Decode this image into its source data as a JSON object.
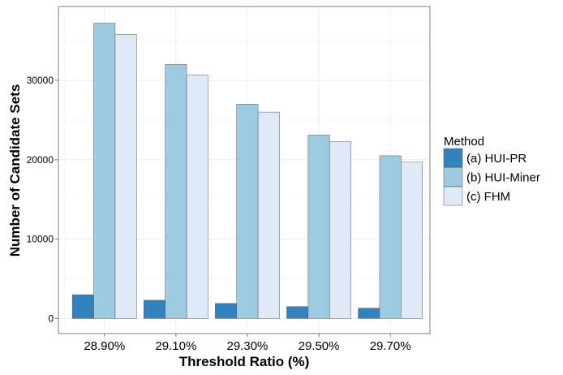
{
  "chart_data": {
    "type": "bar",
    "xlabel": "Threshold Ratio (%)",
    "ylabel": "Number of Candidate Sets",
    "categories": [
      "28.90%",
      "29.10%",
      "29.30%",
      "29.50%",
      "29.70%"
    ],
    "series": [
      {
        "name": "(a) HUI-PR",
        "color": "#3182bd",
        "values": [
          3000,
          2300,
          1900,
          1500,
          1300
        ]
      },
      {
        "name": "(b) HUI-Miner",
        "color": "#9ecae1",
        "values": [
          37200,
          32000,
          27000,
          23100,
          20500
        ]
      },
      {
        "name": "(c) FHM",
        "color": "#deebf7",
        "values": [
          35800,
          30700,
          26000,
          22300,
          19700
        ]
      }
    ],
    "ylim": [
      -1900,
      39300
    ],
    "yticks": [
      0,
      10000,
      20000,
      30000
    ],
    "legend": {
      "title": "Method",
      "position": "right"
    },
    "grid": true
  }
}
